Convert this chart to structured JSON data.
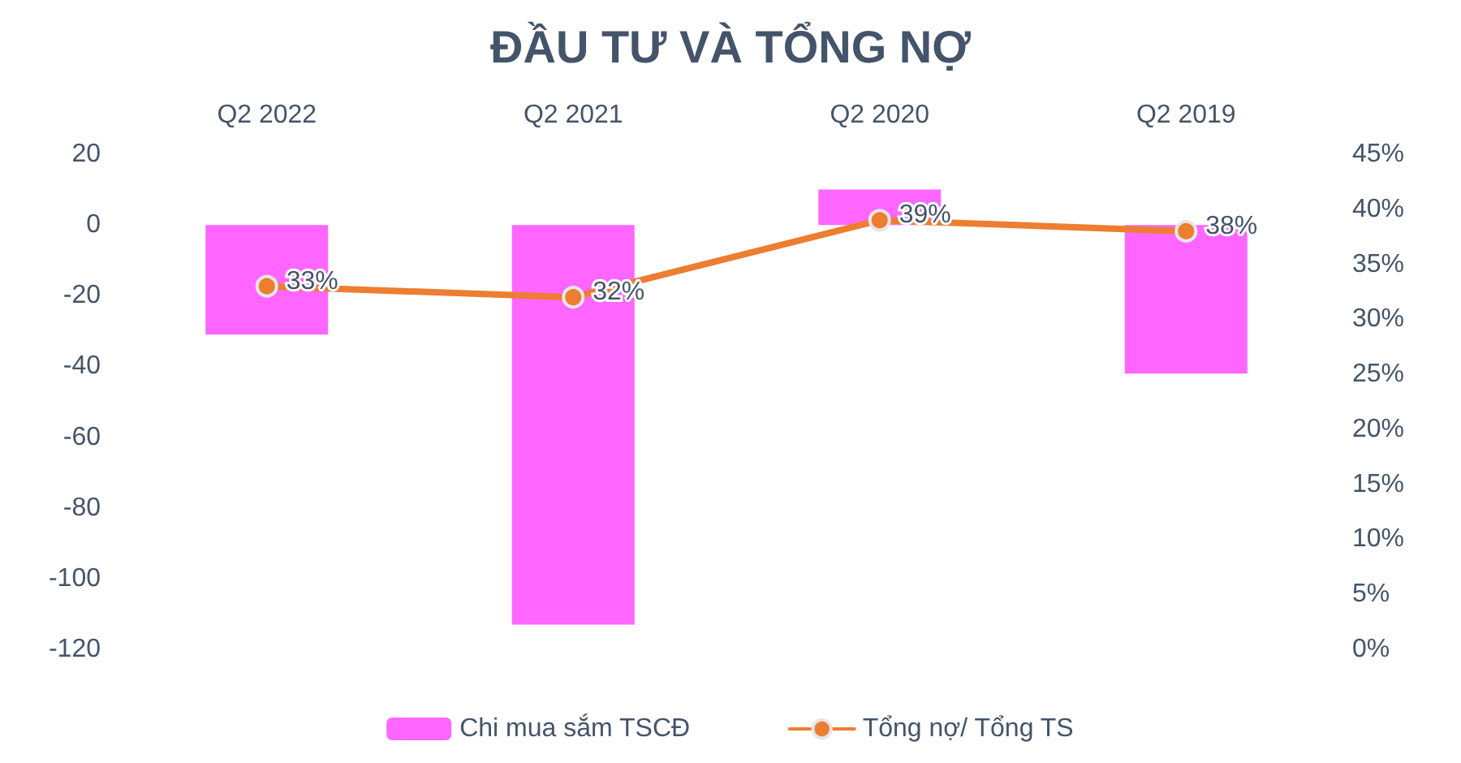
{
  "chart_data": {
    "type": "bar",
    "title": "ĐẦU TƯ VÀ TỔNG NỢ",
    "categories": [
      "Q2 2022",
      "Q2 2021",
      "Q2 2020",
      "Q2 2019"
    ],
    "series": [
      {
        "name": "Chi mua sắm TSCĐ",
        "color": "#ff66ff",
        "values": [
          -31,
          -113,
          10,
          -42
        ]
      },
      {
        "name": "Tổng nợ/ Tổng TS",
        "type": "line",
        "axis": "y2",
        "color": "#ed7d31",
        "values": [
          33,
          32,
          39,
          38
        ],
        "value_labels": [
          "33%",
          "32%",
          "39%",
          "38%"
        ]
      }
    ],
    "ylim": [
      -120,
      20
    ],
    "yticks": [
      20,
      0,
      -20,
      -40,
      -60,
      -80,
      -100,
      -120
    ],
    "y2lim": [
      0,
      45
    ],
    "y2ticks": [
      {
        "value": 0,
        "label": "0%"
      },
      {
        "value": 5,
        "label": "5%"
      },
      {
        "value": 10,
        "label": "10%"
      },
      {
        "value": 15,
        "label": "15%"
      },
      {
        "value": 20,
        "label": "20%"
      },
      {
        "value": 25,
        "label": "25%"
      },
      {
        "value": 30,
        "label": "30%"
      },
      {
        "value": 35,
        "label": "35%"
      },
      {
        "value": 40,
        "label": "40%"
      },
      {
        "value": 45,
        "label": "45%"
      }
    ],
    "grid": false,
    "legend": "bottom",
    "marker": "circle",
    "line_style": "solid"
  }
}
